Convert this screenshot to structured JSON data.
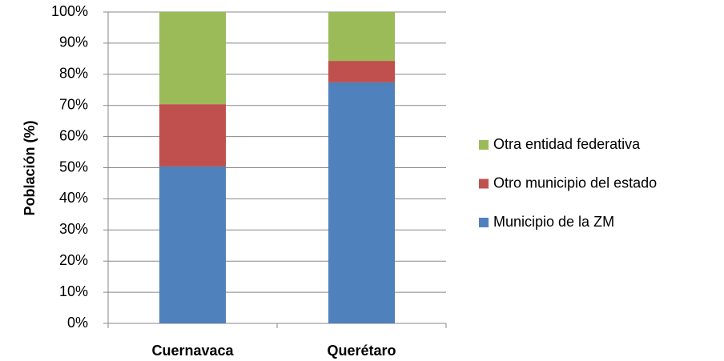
{
  "chart_data": {
    "type": "stacked_bar",
    "y_label": "Población (%)",
    "categories": [
      "Cuernavaca",
      "Querétaro"
    ],
    "series": [
      {
        "name": "Municipio de la ZM",
        "color": "#4f81bd",
        "values": [
          50.4,
          77.4
        ]
      },
      {
        "name": "Otro municipio del estado",
        "color": "#c0504d",
        "values": [
          20.0,
          6.9
        ]
      },
      {
        "name": "Otra entidad federativa",
        "color": "#9bbb59",
        "values": [
          29.6,
          15.7
        ]
      }
    ],
    "ylim": [
      0,
      100
    ],
    "yticks": [
      {
        "value": 0,
        "label": "0%"
      },
      {
        "value": 10,
        "label": "10%"
      },
      {
        "value": 20,
        "label": "20%"
      },
      {
        "value": 30,
        "label": "30%"
      },
      {
        "value": 40,
        "label": "40%"
      },
      {
        "value": 50,
        "label": "50%"
      },
      {
        "value": 60,
        "label": "60%"
      },
      {
        "value": 70,
        "label": "70%"
      },
      {
        "value": 80,
        "label": "80%"
      },
      {
        "value": 90,
        "label": "90%"
      },
      {
        "value": 100,
        "label": "100%"
      }
    ],
    "grid": true,
    "legend": "right"
  }
}
